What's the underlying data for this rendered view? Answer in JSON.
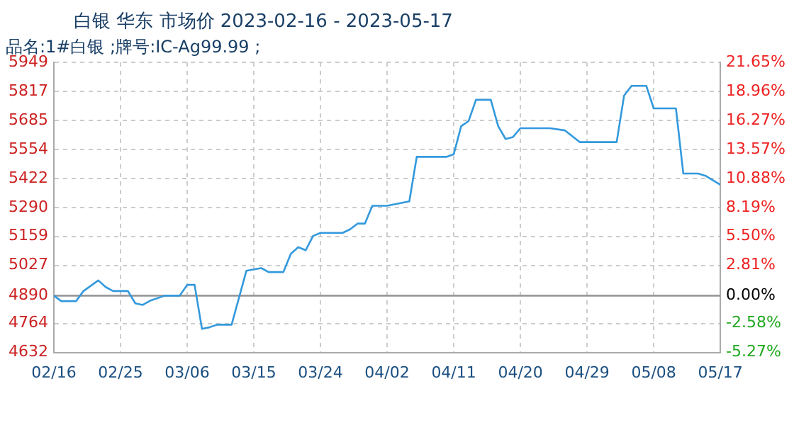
{
  "chart_data": {
    "type": "line",
    "title": "白银 华东 市场价 2023-02-16 - 2023-05-17",
    "subtitle": "品名:1#白银 ;牌号:IC-Ag99.99 ;",
    "x": [
      "2023-02-16",
      "2023-02-17",
      "2023-02-19",
      "2023-02-20",
      "2023-02-22",
      "2023-02-23",
      "2023-02-24",
      "2023-02-26",
      "2023-02-27",
      "2023-02-28",
      "2023-03-01",
      "2023-03-03",
      "2023-03-05",
      "2023-03-06",
      "2023-03-07",
      "2023-03-08",
      "2023-03-09",
      "2023-03-10",
      "2023-03-12",
      "2023-03-14",
      "2023-03-16",
      "2023-03-17",
      "2023-03-19",
      "2023-03-20",
      "2023-03-21",
      "2023-03-22",
      "2023-03-23",
      "2023-03-24",
      "2023-03-27",
      "2023-03-28",
      "2023-03-29",
      "2023-03-30",
      "2023-03-31",
      "2023-04-02",
      "2023-04-05",
      "2023-04-06",
      "2023-04-10",
      "2023-04-11",
      "2023-04-12",
      "2023-04-13",
      "2023-04-14",
      "2023-04-16",
      "2023-04-17",
      "2023-04-18",
      "2023-04-19",
      "2023-04-20",
      "2023-04-24",
      "2023-04-26",
      "2023-04-28",
      "2023-05-03",
      "2023-05-04",
      "2023-05-05",
      "2023-05-07",
      "2023-05-08",
      "2023-05-11",
      "2023-05-12",
      "2023-05-14",
      "2023-05-15",
      "2023-05-17"
    ],
    "series": [
      {
        "color": "#3399dd",
        "values": [
          4890,
          4865,
          4865,
          4911,
          4959,
          4929,
          4911,
          4911,
          4855,
          4848,
          4867,
          4890,
          4890,
          4939,
          4939,
          4739,
          4746,
          4758,
          4758,
          5003,
          5015,
          4997,
          4997,
          5080,
          5110,
          5096,
          5161,
          5175,
          5175,
          5191,
          5217,
          5217,
          5298,
          5298,
          5318,
          5520,
          5520,
          5532,
          5659,
          5682,
          5779,
          5779,
          5659,
          5601,
          5610,
          5650,
          5650,
          5640,
          5587,
          5587,
          5798,
          5842,
          5842,
          5740,
          5740,
          5444,
          5444,
          5434,
          5393
        ]
      }
    ],
    "xlim": [
      "2023-02-16",
      "2023-05-17"
    ],
    "xticks": [
      {
        "value": "2023-02-16",
        "label": "02/16"
      },
      {
        "value": "2023-02-25",
        "label": "02/25"
      },
      {
        "value": "2023-03-06",
        "label": "03/06"
      },
      {
        "value": "2023-03-15",
        "label": "03/15"
      },
      {
        "value": "2023-03-24",
        "label": "03/24"
      },
      {
        "value": "2023-04-02",
        "label": "04/02"
      },
      {
        "value": "2023-04-11",
        "label": "04/11"
      },
      {
        "value": "2023-04-20",
        "label": "04/20"
      },
      {
        "value": "2023-04-29",
        "label": "04/29"
      },
      {
        "value": "2023-05-08",
        "label": "05/08"
      },
      {
        "value": "2023-05-17",
        "label": "05/17"
      }
    ],
    "ylim": [
      4632,
      5949
    ],
    "yticks": [
      4632,
      4764,
      4890,
      5027,
      5159,
      5290,
      5422,
      5554,
      5685,
      5817,
      5949
    ],
    "y2lim": [
      -5.27,
      21.65
    ],
    "y2ticks": [
      {
        "value": -5.27,
        "label": "-5.27%"
      },
      {
        "value": -2.58,
        "label": "-2.58%"
      },
      {
        "value": 0,
        "label": "0.00%"
      },
      {
        "value": 2.81,
        "label": "2.81%"
      },
      {
        "value": 5.5,
        "label": "5.50%"
      },
      {
        "value": 8.19,
        "label": "8.19%"
      },
      {
        "value": 10.88,
        "label": "10.88%"
      },
      {
        "value": 13.57,
        "label": "13.57%"
      },
      {
        "value": 16.27,
        "label": "16.27%"
      },
      {
        "value": 18.96,
        "label": "18.96%"
      },
      {
        "value": 21.65,
        "label": "21.65%"
      }
    ],
    "ref_lines": [
      {
        "axis": "y",
        "value": 4890,
        "color": "#999999"
      }
    ],
    "grid": true,
    "legend": false,
    "marker": "none",
    "line_style": "solid"
  }
}
